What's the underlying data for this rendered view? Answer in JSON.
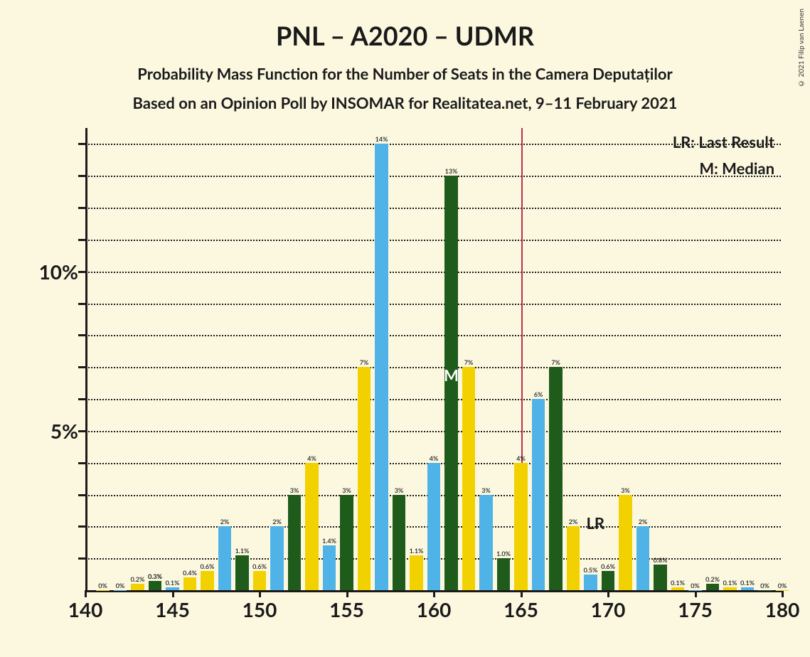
{
  "title": "PNL – A2020 – UDMR",
  "subtitle1": "Probability Mass Function for the Number of Seats in the Camera Deputaților",
  "subtitle2": "Based on an Opinion Poll by INSOMAR for Realitatea.net, 9–11 February 2021",
  "copyright": "© 2021 Filip van Laenen",
  "legend": {
    "lr": "LR: Last Result",
    "m": "M: Median"
  },
  "chart": {
    "type": "bar-grouped",
    "xlim": [
      140,
      180
    ],
    "ylim": [
      0,
      14.5
    ],
    "ytick_step": 1,
    "ytick_major": [
      5,
      10
    ],
    "xtick_major": [
      140,
      145,
      150,
      155,
      160,
      165,
      170,
      175,
      180
    ],
    "ytick_labels": {
      "5": "5%",
      "10": "10%"
    },
    "background_color": "#fcf8e0",
    "grid_color": "#1a1a1a",
    "grid_style": "dotted",
    "axis_color": "#1a1a1a",
    "ref_line_x": 165,
    "ref_line_color": "#b8314b",
    "median_marker": {
      "x": 161,
      "label": "M"
    },
    "lr_marker": {
      "x": 169,
      "label": "LR"
    },
    "series_colors": [
      "#f2d100",
      "#4fb3e8",
      "#1f5c1c"
    ],
    "label_fontsize": 9,
    "axis_fontsize": 28,
    "bar_group_width_ratio": 0.75,
    "data": [
      {
        "x": 141,
        "v": [
          0,
          null,
          null
        ],
        "labels": [
          "0%",
          null,
          null
        ]
      },
      {
        "x": 142,
        "v": [
          null,
          0,
          null
        ],
        "labels": [
          null,
          "0%",
          null
        ]
      },
      {
        "x": 143,
        "v": [
          0.2,
          null,
          null
        ],
        "labels": [
          "0.2%",
          null,
          null
        ]
      },
      {
        "x": 144,
        "v": [
          null,
          0.3,
          0.3
        ],
        "labels": [
          null,
          "0.3%",
          "0.3%"
        ]
      },
      {
        "x": 145,
        "v": [
          null,
          0.1,
          null
        ],
        "labels": [
          null,
          "0.1%",
          null
        ]
      },
      {
        "x": 146,
        "v": [
          0.4,
          null,
          null
        ],
        "labels": [
          "0.4%",
          null,
          null
        ]
      },
      {
        "x": 147,
        "v": [
          0.6,
          null,
          null
        ],
        "labels": [
          "0.6%",
          null,
          null
        ]
      },
      {
        "x": 148,
        "v": [
          null,
          2,
          null
        ],
        "labels": [
          null,
          "2%",
          null
        ]
      },
      {
        "x": 149,
        "v": [
          null,
          null,
          1.1
        ],
        "labels": [
          null,
          null,
          "1.1%"
        ]
      },
      {
        "x": 150,
        "v": [
          0.6,
          null,
          null
        ],
        "labels": [
          "0.6%",
          null,
          null
        ]
      },
      {
        "x": 151,
        "v": [
          null,
          2,
          null
        ],
        "labels": [
          null,
          "2%",
          null
        ]
      },
      {
        "x": 152,
        "v": [
          null,
          null,
          3
        ],
        "labels": [
          null,
          null,
          "3%"
        ]
      },
      {
        "x": 153,
        "v": [
          4,
          null,
          null
        ],
        "labels": [
          "4%",
          null,
          null
        ]
      },
      {
        "x": 154,
        "v": [
          null,
          1.4,
          null
        ],
        "labels": [
          null,
          "1.4%",
          null
        ]
      },
      {
        "x": 155,
        "v": [
          null,
          null,
          3
        ],
        "labels": [
          null,
          null,
          "3%"
        ]
      },
      {
        "x": 156,
        "v": [
          7,
          null,
          null
        ],
        "labels": [
          "7%",
          null,
          null
        ]
      },
      {
        "x": 157,
        "v": [
          null,
          14,
          null
        ],
        "labels": [
          null,
          "14%",
          null
        ]
      },
      {
        "x": 158,
        "v": [
          null,
          null,
          3
        ],
        "labels": [
          null,
          null,
          "3%"
        ]
      },
      {
        "x": 159,
        "v": [
          1.1,
          null,
          null
        ],
        "labels": [
          "1.1%",
          null,
          null
        ]
      },
      {
        "x": 160,
        "v": [
          null,
          4,
          null
        ],
        "labels": [
          null,
          "4%",
          null
        ]
      },
      {
        "x": 161,
        "v": [
          null,
          null,
          13
        ],
        "labels": [
          null,
          null,
          "13%"
        ]
      },
      {
        "x": 162,
        "v": [
          7,
          null,
          null
        ],
        "labels": [
          "7%",
          null,
          null
        ]
      },
      {
        "x": 163,
        "v": [
          null,
          3,
          null
        ],
        "labels": [
          null,
          "3%",
          null
        ]
      },
      {
        "x": 164,
        "v": [
          null,
          null,
          1.0
        ],
        "labels": [
          null,
          null,
          "1.0%"
        ]
      },
      {
        "x": 165,
        "v": [
          4,
          null,
          null
        ],
        "labels": [
          "4%",
          null,
          null
        ]
      },
      {
        "x": 166,
        "v": [
          null,
          6,
          null
        ],
        "labels": [
          null,
          "6%",
          null
        ]
      },
      {
        "x": 167,
        "v": [
          null,
          null,
          7
        ],
        "labels": [
          null,
          null,
          "7%"
        ]
      },
      {
        "x": 168,
        "v": [
          2,
          null,
          null
        ],
        "labels": [
          "2%",
          null,
          null
        ]
      },
      {
        "x": 169,
        "v": [
          null,
          0.5,
          null
        ],
        "labels": [
          null,
          "0.5%",
          null
        ]
      },
      {
        "x": 170,
        "v": [
          null,
          null,
          0.6
        ],
        "labels": [
          null,
          null,
          "0.6%"
        ]
      },
      {
        "x": 171,
        "v": [
          3,
          null,
          null
        ],
        "labels": [
          "3%",
          null,
          null
        ]
      },
      {
        "x": 172,
        "v": [
          null,
          2,
          null
        ],
        "labels": [
          null,
          "2%",
          null
        ]
      },
      {
        "x": 173,
        "v": [
          null,
          null,
          0.8
        ],
        "labels": [
          null,
          null,
          "0.8%"
        ]
      },
      {
        "x": 174,
        "v": [
          0.1,
          null,
          null
        ],
        "labels": [
          "0.1%",
          null,
          null
        ]
      },
      {
        "x": 175,
        "v": [
          null,
          0,
          null
        ],
        "labels": [
          null,
          "0%",
          null
        ]
      },
      {
        "x": 176,
        "v": [
          null,
          null,
          0.2
        ],
        "labels": [
          null,
          null,
          "0.2%"
        ]
      },
      {
        "x": 177,
        "v": [
          0.1,
          null,
          null
        ],
        "labels": [
          "0.1%",
          null,
          null
        ]
      },
      {
        "x": 178,
        "v": [
          null,
          0.1,
          null
        ],
        "labels": [
          null,
          "0.1%",
          null
        ]
      },
      {
        "x": 179,
        "v": [
          null,
          null,
          0
        ],
        "labels": [
          null,
          null,
          "0%"
        ]
      },
      {
        "x": 180,
        "v": [
          0,
          null,
          null
        ],
        "labels": [
          "0%",
          null,
          null
        ]
      }
    ]
  }
}
